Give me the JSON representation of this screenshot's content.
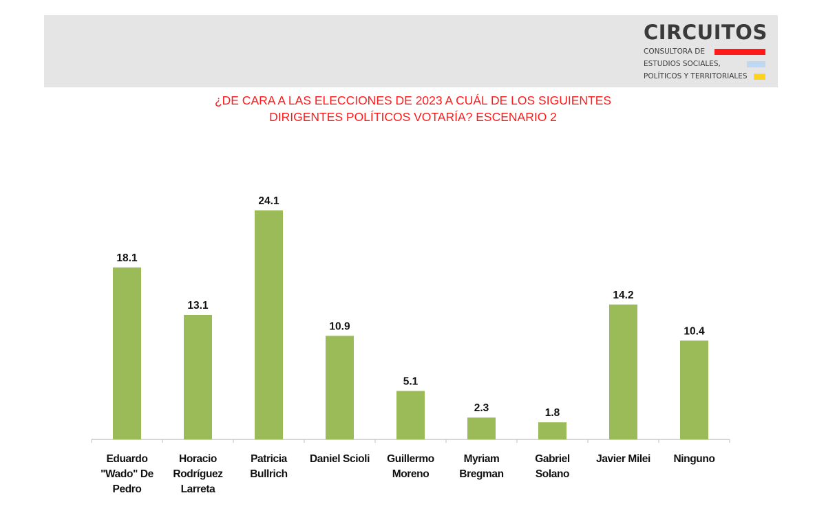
{
  "logo": {
    "name": "CIRCUITOS",
    "lines": [
      "CONSULTORA DE",
      "ESTUDIOS SOCIALES,",
      "POLÍTICOS Y TERRITORIALES"
    ],
    "colors": {
      "red": "#ff1a1a",
      "blue": "#bcd8f2",
      "yellow": "#ffd21e"
    }
  },
  "chart_data": {
    "type": "bar",
    "title_lines": [
      "¿DE CARA A LAS ELECCIONES DE 2023 A CUÁL DE LOS SIGUIENTES",
      "DIRIGENTES POLÍTICOS VOTARÍA? ESCENARIO 2"
    ],
    "title_color": "#ff1a1a",
    "categories": [
      "Eduardo \"Wado\" De Pedro",
      "Horacio Rodríguez Larreta",
      "Patricia Bullrich",
      "Daniel Scioli",
      "Guillermo Moreno",
      "Myriam Bregman",
      "Gabriel Solano",
      "Javier Milei",
      "Ninguno"
    ],
    "category_lines": [
      [
        "Eduardo",
        "\"Wado\" De",
        "Pedro"
      ],
      [
        "Horacio",
        "Rodríguez",
        "Larreta"
      ],
      [
        "Patricia",
        "Bullrich"
      ],
      [
        "Daniel Scioli"
      ],
      [
        "Guillermo",
        "Moreno"
      ],
      [
        "Myriam",
        "Bregman"
      ],
      [
        "Gabriel",
        "Solano"
      ],
      [
        "Javier Milei"
      ],
      [
        "Ninguno"
      ]
    ],
    "values": [
      18.1,
      13.1,
      24.1,
      10.9,
      5.1,
      2.3,
      1.8,
      14.2,
      10.4
    ],
    "value_labels": [
      "18.1",
      "13.1",
      "24.1",
      "10.9",
      "5.1",
      "2.3",
      "1.8",
      "14.2",
      "10.4"
    ],
    "bar_color": "#9bbb59",
    "ylim": [
      0,
      24.1
    ],
    "grid": false,
    "legend": "none"
  }
}
